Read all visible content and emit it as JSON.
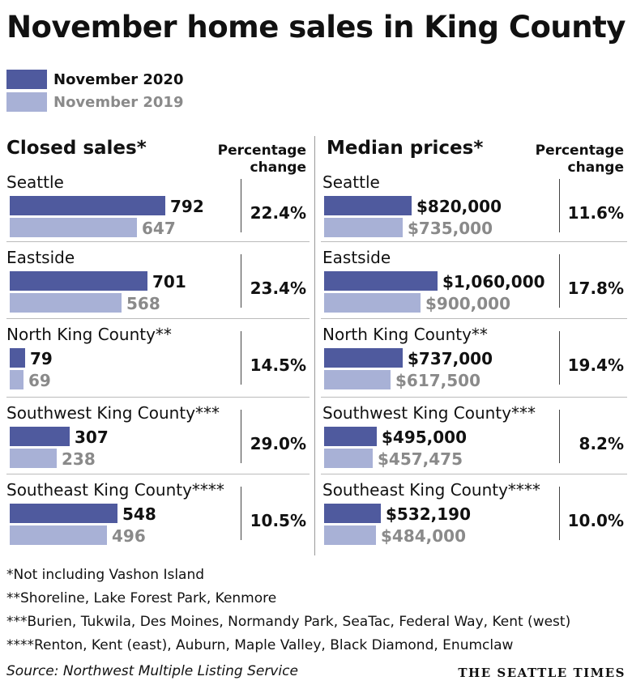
{
  "title": "November home sales in King County",
  "legend": [
    {
      "label": "November 2020",
      "color": "#4f5a9e"
    },
    {
      "label": "November 2019",
      "color": "#a8b1d6"
    }
  ],
  "chart_data": [
    {
      "type": "bar",
      "title": "Closed sales*",
      "pct_header": [
        "Percentage",
        "change"
      ],
      "categories": [
        "Seattle",
        "Eastside",
        "North King County**",
        "Southwest King County***",
        "Southeast King County****"
      ],
      "series": [
        {
          "name": "November 2020",
          "values": [
            792,
            701,
            79,
            307,
            548
          ],
          "labels": [
            "792",
            "701",
            "79",
            "307",
            "548"
          ]
        },
        {
          "name": "November 2019",
          "values": [
            647,
            568,
            69,
            238,
            496
          ],
          "labels": [
            "647",
            "568",
            "69",
            "238",
            "496"
          ]
        }
      ],
      "pct_change": [
        "22.4%",
        "23.4%",
        "14.5%",
        "29.0%",
        "10.5%"
      ]
    },
    {
      "type": "bar",
      "title": "Median prices*",
      "pct_header": [
        "Percentage",
        "change"
      ],
      "categories": [
        "Seattle",
        "Eastside",
        "North King County**",
        "Southwest King County***",
        "Southeast King County****"
      ],
      "series": [
        {
          "name": "November 2020",
          "values": [
            820000,
            1060000,
            737000,
            495000,
            532190
          ],
          "labels": [
            "$820,000",
            "$1,060,000",
            "$737,000",
            "$495,000",
            "$532,190"
          ]
        },
        {
          "name": "November 2019",
          "values": [
            735000,
            900000,
            617500,
            457475,
            484000
          ],
          "labels": [
            "$735,000",
            "$900,000",
            "$617,500",
            "$457,475",
            "$484,000"
          ]
        }
      ],
      "pct_change": [
        "11.6%",
        "17.8%",
        "19.4%",
        "8.2%",
        "10.0%"
      ]
    }
  ],
  "footnotes": [
    "*Not including Vashon Island",
    "**Shoreline, Lake Forest Park, Kenmore",
    "***Burien, Tukwila, Des Moines, Normandy Park, SeaTac, Federal Way, Kent (west)",
    "****Renton, Kent (east), Auburn, Maple Valley, Black Diamond, Enumclaw"
  ],
  "source": "Source: Northwest Multiple Listing Service",
  "brand": "THE SEATTLE TIMES"
}
